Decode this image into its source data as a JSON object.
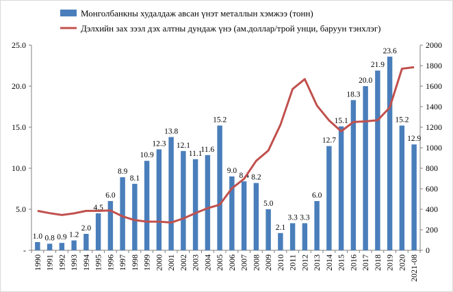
{
  "chart_data": {
    "type": "bar",
    "categories": [
      "1990",
      "1991",
      "1992",
      "1993",
      "1994",
      "1995",
      "1996",
      "1997",
      "1998",
      "1999",
      "2000",
      "2001",
      "2002",
      "2003",
      "2004",
      "2005",
      "2006",
      "2007",
      "2008",
      "2009",
      "2010",
      "2011",
      "2012",
      "2013",
      "2014",
      "2015",
      "2016",
      "2017",
      "2018",
      "2019",
      "2020",
      "2021-08"
    ],
    "series": [
      {
        "name": "Монголбанкны худалдаж авсан үнэт металлын хэмжээ (тонн)",
        "type": "bar",
        "axis": "left",
        "color": "#4a7ebb",
        "values": [
          1.0,
          0.8,
          0.9,
          1.2,
          2.0,
          4.5,
          6.0,
          8.9,
          8.1,
          10.9,
          12.3,
          13.8,
          12.1,
          11.1,
          11.6,
          15.2,
          9.0,
          8.4,
          8.2,
          5.0,
          2.1,
          3.3,
          3.3,
          6.0,
          12.7,
          15.1,
          18.3,
          20.0,
          21.9,
          23.6,
          15.2,
          12.9
        ],
        "labels": [
          "1.0",
          "0.8",
          "0.9",
          "1.2",
          "2.0",
          "4.5",
          "6.0",
          "8.9",
          "8.1",
          "10.9",
          "12.3",
          "13.8",
          "12.1",
          "11.1",
          "11.6",
          "15.2",
          "9.0",
          "8.4",
          "8.2",
          "5.0",
          "2.1",
          "3.3",
          "3.3",
          "6.0",
          "12.7",
          "15.1",
          "18.3",
          "20.0",
          "21.9",
          "23.6",
          "15.2",
          "12.9"
        ]
      },
      {
        "name": "Дэлхийн зах зээл дэх алтны дундаж үнэ (ам.доллар/трой унци, баруун тэнхлэг)",
        "type": "line",
        "axis": "right",
        "color": "#c0504d",
        "values": [
          384,
          362,
          344,
          360,
          384,
          384,
          388,
          331,
          294,
          279,
          279,
          271,
          310,
          363,
          410,
          445,
          604,
          696,
          872,
          972,
          1225,
          1572,
          1669,
          1411,
          1266,
          1160,
          1251,
          1257,
          1268,
          1393,
          1770,
          1785
        ]
      }
    ],
    "y_left": {
      "ylim": [
        0,
        25
      ],
      "ticks": [
        "-",
        "5.0",
        "10.0",
        "15.0",
        "20.0",
        "25.0"
      ]
    },
    "y_right": {
      "ylim": [
        0,
        2000
      ],
      "ticks": [
        "0",
        "200",
        "400",
        "600",
        "800",
        "1000",
        "1200",
        "1400",
        "1600",
        "1800",
        "2000"
      ]
    },
    "grid": false,
    "legend_position": "top"
  }
}
